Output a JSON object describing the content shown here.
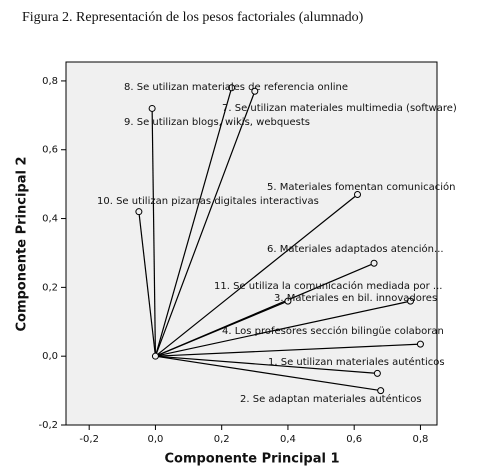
{
  "chart_data": {
    "type": "loading",
    "title": "Figura 2. Representación de los pesos factoriales (alumnado)",
    "x_label": "Componente Principal 1",
    "y_label": "Componente Principal 2",
    "labels": [
      "8. Se utilizan materiales de referencia online",
      "7. Se utilizan materiales multimedia (software)",
      "9. Se utilizan blogs, wikis, webquests",
      "10. Se utilizan pizarras digitales interactivas",
      "5. Materiales fomentan comunicación",
      "6. Materiales adaptados atención...",
      "11. Se utiliza la comunicación mediada por ...",
      "3. Materiales en bil. innovadores",
      "4. Los profesores sección bilingüe colaboran",
      "1. Se utilizan materiales auténticos",
      "2. Se adaptan materiales auténticos"
    ],
    "x": [
      0.23,
      0.3,
      -0.01,
      -0.05,
      0.61,
      0.66,
      0.77,
      0.4,
      0.8,
      0.67,
      0.68
    ],
    "values": [
      0.78,
      0.77,
      0.72,
      0.42,
      0.47,
      0.27,
      0.16,
      0.16,
      0.035,
      -0.05,
      -0.1
    ],
    "color": "#000000",
    "xlim": [
      -0.27,
      0.85
    ],
    "ylim": [
      -0.2,
      0.855
    ],
    "xticks": [
      {
        "value": -0.2,
        "label": "-0,2"
      },
      {
        "value": 0.0,
        "label": "0,0"
      },
      {
        "value": 0.2,
        "label": "0,2"
      },
      {
        "value": 0.4,
        "label": "0,4"
      },
      {
        "value": 0.6,
        "label": "0,6"
      },
      {
        "value": 0.8,
        "label": "0,8"
      }
    ],
    "yticks": [
      {
        "value": -0.2,
        "label": "-0,2"
      },
      {
        "value": 0.0,
        "label": "0,0"
      },
      {
        "value": 0.2,
        "label": "0,2"
      },
      {
        "value": 0.4,
        "label": "0,4"
      },
      {
        "value": 0.6,
        "label": "0,6"
      },
      {
        "value": 0.8,
        "label": "0,8"
      }
    ]
  }
}
